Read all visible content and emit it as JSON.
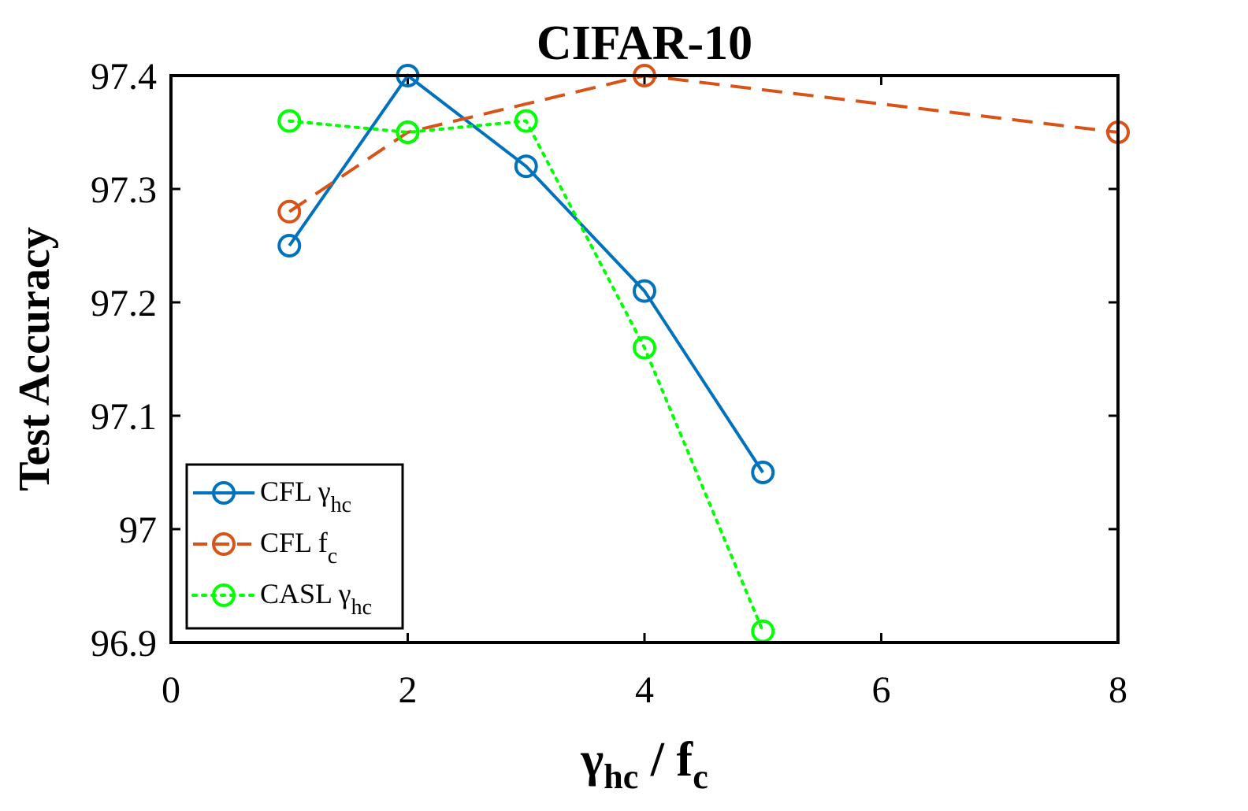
{
  "chart_data": {
    "type": "line",
    "title": "CIFAR-10",
    "xlabel": {
      "base1": "γ",
      "sub1": "hc",
      "sep": " / ",
      "base2": "f",
      "sub2": "c"
    },
    "ylabel": "Test Accuracy",
    "xlim": [
      0,
      8
    ],
    "ylim": [
      96.9,
      97.4
    ],
    "xticks": [
      0,
      2,
      4,
      6,
      8
    ],
    "xtick_labels": [
      "0",
      "2",
      "4",
      "6",
      "8"
    ],
    "yticks": [
      96.9,
      97.0,
      97.1,
      97.2,
      97.3,
      97.4
    ],
    "ytick_labels": [
      "96.9",
      "97",
      "97.1",
      "97.2",
      "97.3",
      "97.4"
    ],
    "grid": false,
    "legend_position": "bottom-left",
    "series": [
      {
        "name": "CFL γhc",
        "legend": {
          "base": "CFL γ",
          "sub": "hc"
        },
        "color": "#0072BD",
        "line_style": "solid",
        "marker": "circle",
        "x": [
          1,
          2,
          3,
          4,
          5
        ],
        "y": [
          97.25,
          97.4,
          97.32,
          97.21,
          97.05
        ]
      },
      {
        "name": "CFL fc",
        "legend": {
          "base": "CFL f",
          "sub": "c"
        },
        "color": "#D95319",
        "line_style": "dashed",
        "marker": "circle",
        "x": [
          1,
          2,
          4,
          8
        ],
        "y": [
          97.28,
          97.35,
          97.4,
          97.35
        ]
      },
      {
        "name": "CASL γhc",
        "legend": {
          "base": "CASL γ",
          "sub": "hc"
        },
        "color": "#00FF00",
        "line_style": "dotted",
        "marker": "circle",
        "x": [
          1,
          2,
          3,
          4,
          5
        ],
        "y": [
          97.36,
          97.35,
          97.36,
          97.16,
          96.91
        ]
      }
    ]
  }
}
